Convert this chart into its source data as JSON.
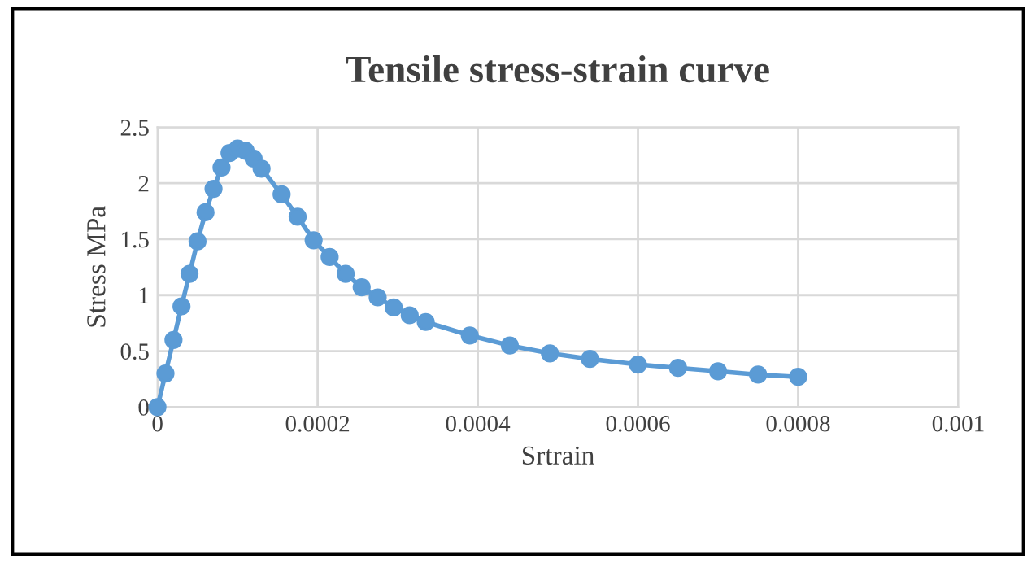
{
  "chart_data": {
    "type": "line",
    "title": "Tensile stress-strain curve",
    "xlabel": "Srtrain",
    "ylabel": "Stress MPa",
    "series": [
      {
        "color": "#5b9bd5",
        "marker": "circle",
        "x": [
          0,
          1e-05,
          2e-05,
          3e-05,
          4e-05,
          5e-05,
          6e-05,
          7e-05,
          8e-05,
          9e-05,
          0.0001,
          0.00011,
          0.00012,
          0.00013,
          0.000155,
          0.000175,
          0.000195,
          0.000215,
          0.000235,
          0.000255,
          0.000275,
          0.000295,
          0.000315,
          0.000335,
          0.00039,
          0.00044,
          0.00049,
          0.00054,
          0.0006,
          0.00065,
          0.0007,
          0.00075,
          0.0008
        ],
        "values": [
          0,
          0.3,
          0.6,
          0.9,
          1.19,
          1.48,
          1.74,
          1.95,
          2.14,
          2.27,
          2.31,
          2.29,
          2.22,
          2.13,
          1.9,
          1.7,
          1.49,
          1.34,
          1.19,
          1.07,
          0.98,
          0.89,
          0.82,
          0.76,
          0.64,
          0.55,
          0.48,
          0.43,
          0.38,
          0.35,
          0.32,
          0.29,
          0.27
        ]
      }
    ],
    "xlim": [
      0,
      0.001
    ],
    "xticks": [
      0,
      0.0002,
      0.0004,
      0.0006,
      0.0008,
      0.001
    ],
    "ylim": [
      0,
      2.5
    ],
    "yticks": [
      0,
      0.5,
      1,
      1.5,
      2,
      2.5
    ],
    "grid": true,
    "legend": false
  }
}
